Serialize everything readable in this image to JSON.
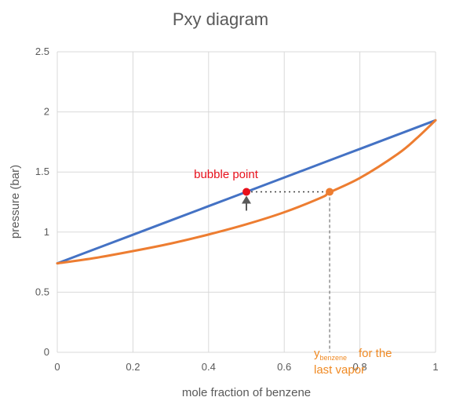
{
  "chart_data": {
    "type": "line",
    "title": "Pxy diagram",
    "xlabel": "mole fraction of benzene",
    "ylabel": "pressure (bar)",
    "xlim": [
      0,
      1
    ],
    "ylim": [
      0,
      2.5
    ],
    "xticks": [
      0,
      0.2,
      0.4,
      0.6,
      0.8,
      1
    ],
    "xtick_labels": [
      "0",
      "0.2",
      "0.4",
      "0.6",
      "0.8",
      "1"
    ],
    "yticks": [
      0,
      0.5,
      1,
      1.5,
      2,
      2.5
    ],
    "ytick_labels": [
      "0",
      "0.5",
      "1",
      "1.5",
      "2",
      "2.5"
    ],
    "grid": true,
    "legend": "none",
    "series": [
      {
        "color": "#4472c4",
        "x": [
          0,
          0.1,
          0.2,
          0.3,
          0.4,
          0.5,
          0.6,
          0.7,
          0.8,
          0.9,
          1
        ],
        "y": [
          0.74,
          0.859,
          0.978,
          1.097,
          1.216,
          1.335,
          1.454,
          1.573,
          1.692,
          1.811,
          1.93
        ]
      },
      {
        "color": "#ed7d31",
        "x": [
          0,
          0.1,
          0.2,
          0.3,
          0.4,
          0.5,
          0.6,
          0.7,
          0.72,
          0.8,
          0.9,
          0.95,
          1
        ],
        "y": [
          0.74,
          0.785,
          0.842,
          0.905,
          0.98,
          1.065,
          1.165,
          1.29,
          1.33,
          1.45,
          1.65,
          1.78,
          1.93
        ]
      }
    ],
    "points": [
      {
        "x": 0.5,
        "y": 1.335,
        "color": "#e8101b"
      },
      {
        "x": 0.72,
        "y": 1.335,
        "color": "#ed7d31"
      }
    ],
    "annotations": {
      "bubble_label": "bubble point",
      "y_main": "y",
      "y_sub": "benzene",
      "vapor_line1": "for the",
      "vapor_line2": "last vapor"
    }
  }
}
